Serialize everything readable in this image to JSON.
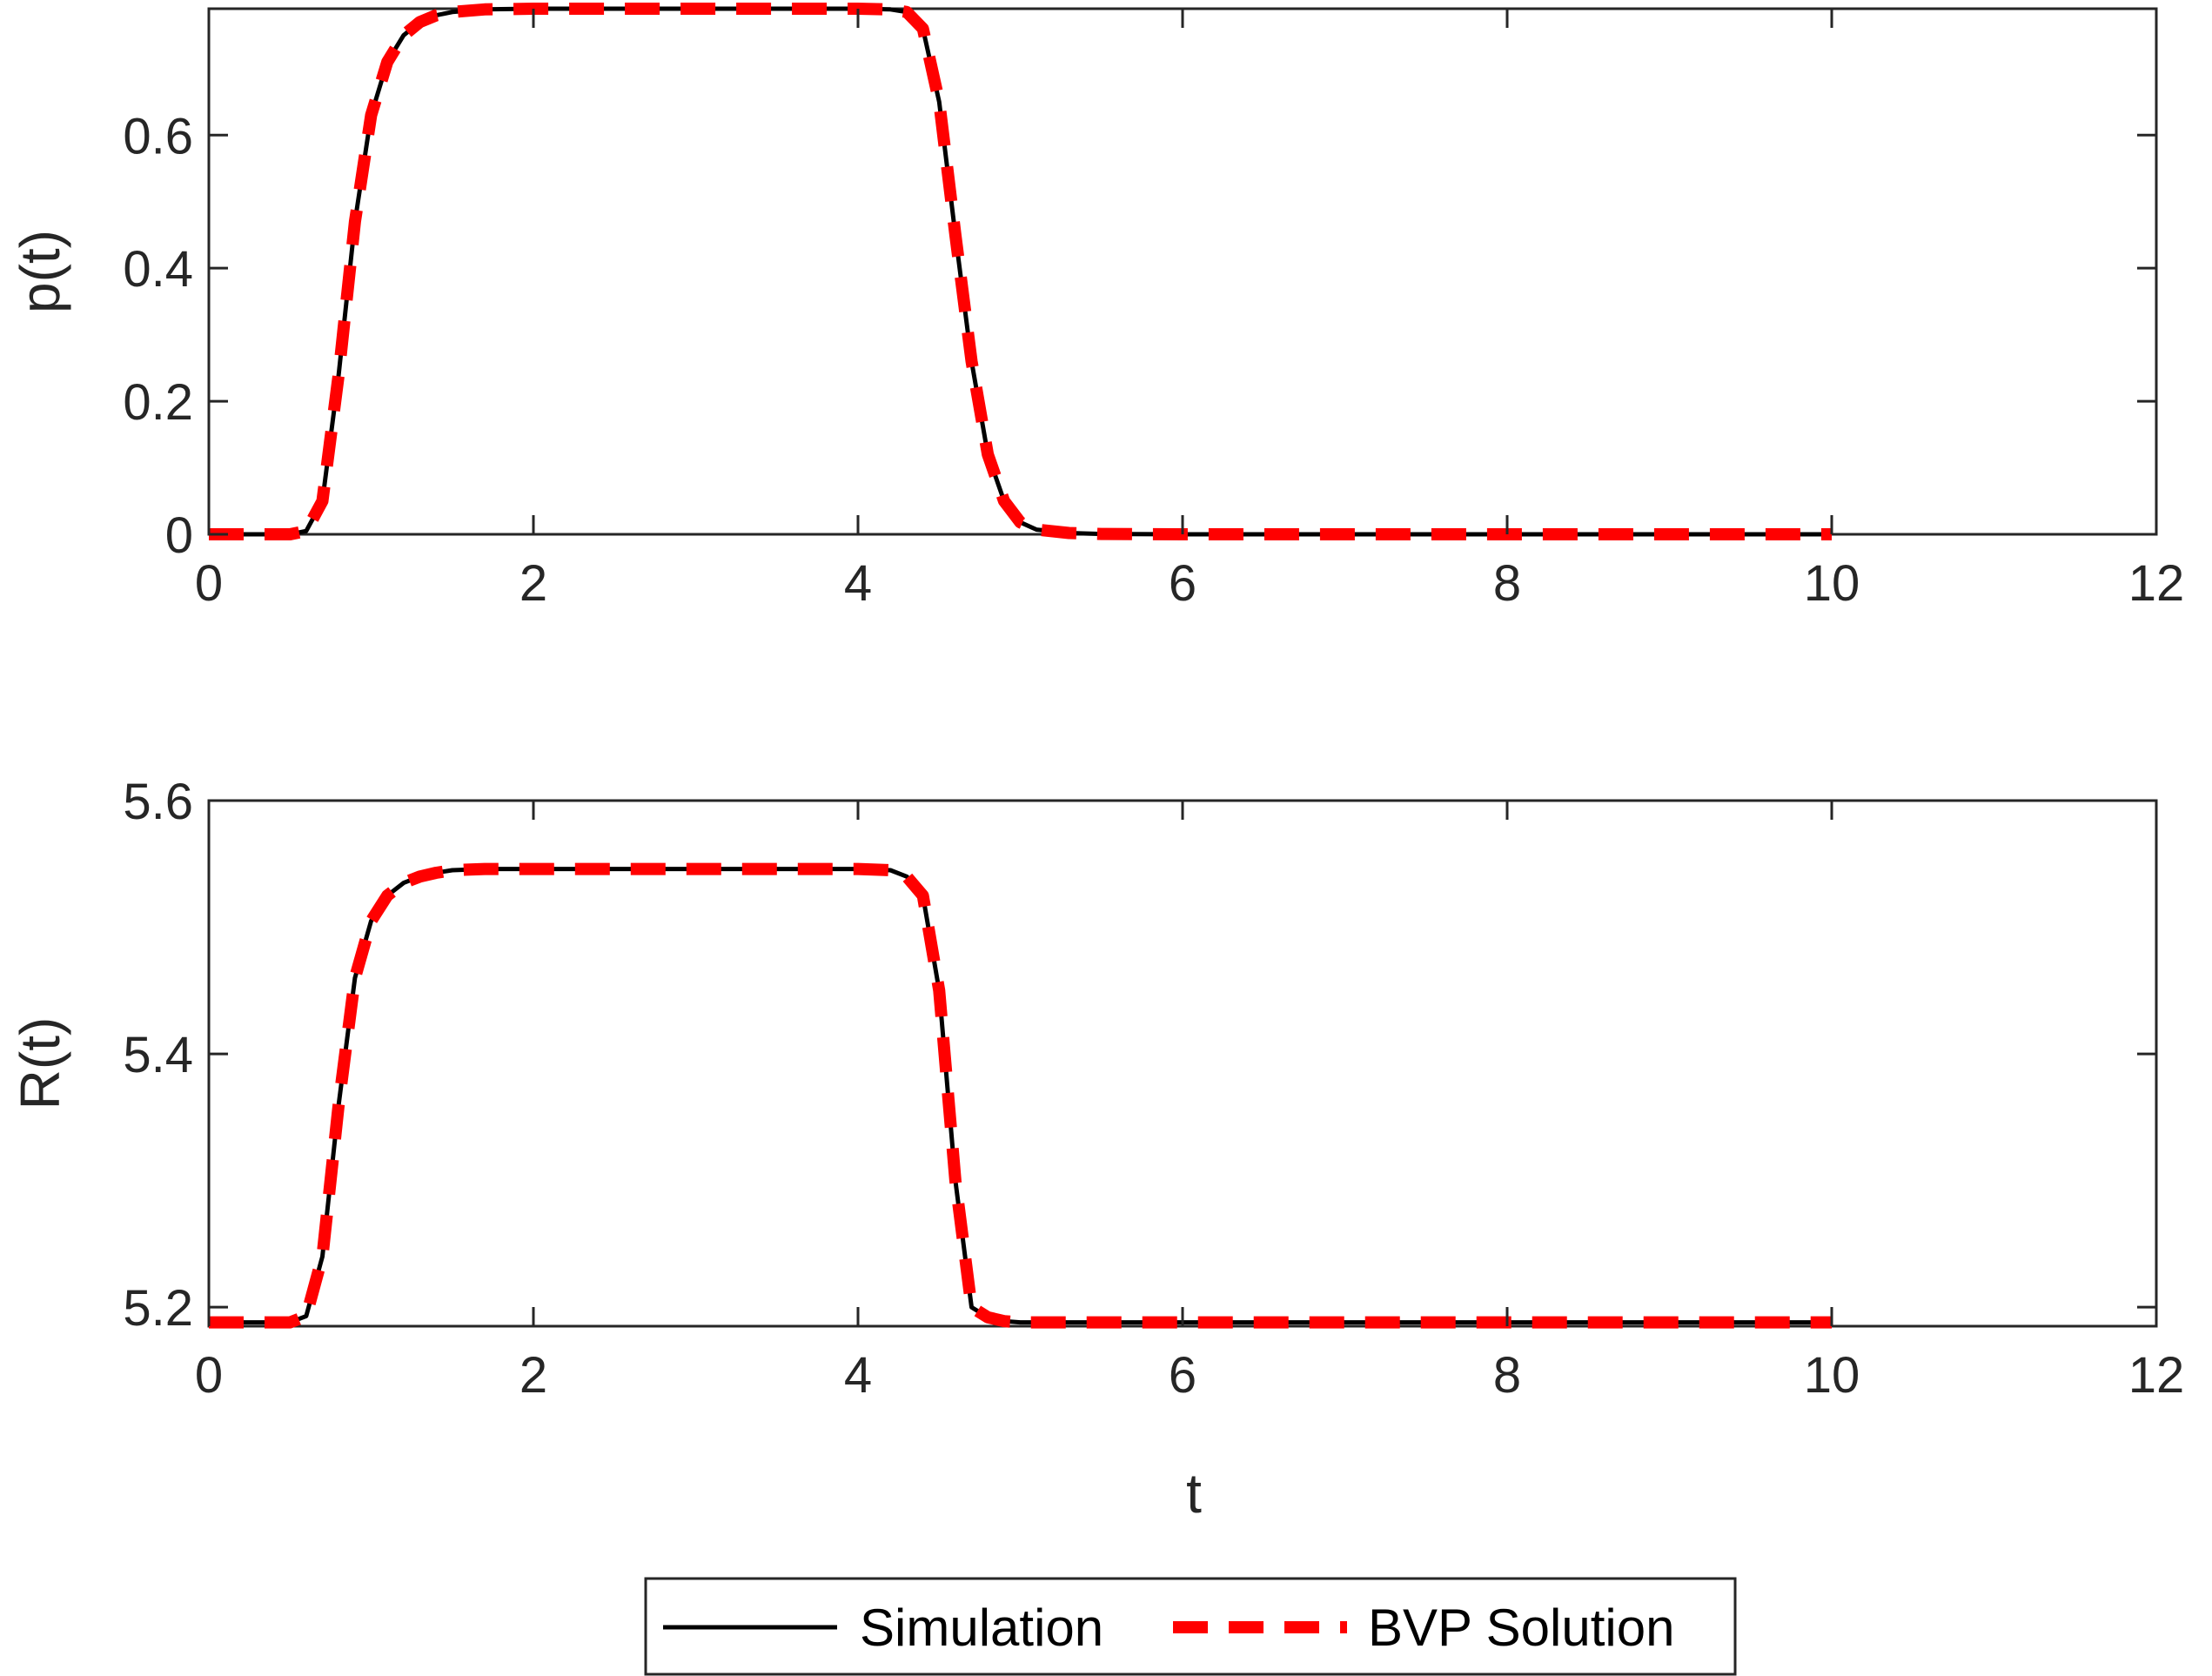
{
  "colors": {
    "simulation": "#000000",
    "bvp": "#ff0000",
    "axes": "#262626",
    "background": "#ffffff"
  },
  "chart_data": [
    {
      "type": "line",
      "ylabel": "p(t)",
      "xlabel": "",
      "xlim": [
        0,
        12
      ],
      "ylim": [
        0,
        0.79
      ],
      "xticks": [
        0,
        2,
        4,
        6,
        8,
        10,
        12
      ],
      "xtick_labels": [
        "0",
        "2",
        "4",
        "6",
        "8",
        "10",
        "12"
      ],
      "yticks": [
        0,
        0.2,
        0.4,
        0.6
      ],
      "ytick_labels": [
        "0",
        "0.2",
        "0.4",
        "0.6"
      ],
      "grid": false,
      "series": [
        {
          "name": "Simulation",
          "style": "solid",
          "x": [
            0,
            0.5,
            0.6,
            0.7,
            0.8,
            0.9,
            1.0,
            1.1,
            1.2,
            1.3,
            1.4,
            1.5,
            1.7,
            2.0,
            3.0,
            4.0,
            4.2,
            4.3,
            4.4,
            4.5,
            4.6,
            4.7,
            4.8,
            4.9,
            5.0,
            5.1,
            5.3,
            5.5,
            6.0,
            8.0,
            10.0
          ],
          "y": [
            0,
            0,
            0.005,
            0.05,
            0.24,
            0.47,
            0.63,
            0.71,
            0.75,
            0.77,
            0.78,
            0.785,
            0.789,
            0.79,
            0.79,
            0.79,
            0.789,
            0.785,
            0.76,
            0.65,
            0.45,
            0.26,
            0.12,
            0.05,
            0.018,
            0.007,
            0.002,
            0.0005,
            0,
            0,
            0
          ]
        },
        {
          "name": "BVP Solution",
          "style": "dashed",
          "x": [
            0,
            0.5,
            0.6,
            0.7,
            0.8,
            0.9,
            1.0,
            1.1,
            1.2,
            1.3,
            1.4,
            1.5,
            1.7,
            2.0,
            3.0,
            4.0,
            4.2,
            4.3,
            4.4,
            4.5,
            4.6,
            4.7,
            4.8,
            4.9,
            5.0,
            5.1,
            5.3,
            5.5,
            6.0,
            8.0,
            10.0
          ],
          "y": [
            0,
            0,
            0.005,
            0.05,
            0.24,
            0.47,
            0.63,
            0.71,
            0.75,
            0.77,
            0.78,
            0.785,
            0.789,
            0.79,
            0.79,
            0.79,
            0.789,
            0.785,
            0.76,
            0.65,
            0.45,
            0.26,
            0.12,
            0.05,
            0.018,
            0.007,
            0.002,
            0.0005,
            0,
            0,
            0
          ]
        }
      ]
    },
    {
      "type": "line",
      "ylabel": "R(t)",
      "xlabel": "t",
      "xlim": [
        0,
        12
      ],
      "ylim": [
        5.185,
        5.6
      ],
      "xticks": [
        0,
        2,
        4,
        6,
        8,
        10,
        12
      ],
      "xtick_labels": [
        "0",
        "2",
        "4",
        "6",
        "8",
        "10",
        "12"
      ],
      "yticks": [
        5.2,
        5.4,
        5.6
      ],
      "ytick_labels": [
        "5.2",
        "5.4",
        "5.6"
      ],
      "grid": false,
      "series": [
        {
          "name": "Simulation",
          "style": "solid",
          "x": [
            0,
            0.5,
            0.6,
            0.7,
            0.8,
            0.9,
            1.0,
            1.1,
            1.2,
            1.3,
            1.4,
            1.5,
            1.7,
            2.0,
            3.0,
            4.0,
            4.2,
            4.3,
            4.4,
            4.5,
            4.6,
            4.7,
            4.8,
            4.9,
            5.0,
            5.2,
            5.5,
            6.0,
            8.0,
            10.0
          ],
          "y": [
            5.188,
            5.188,
            5.193,
            5.24,
            5.36,
            5.46,
            5.505,
            5.525,
            5.535,
            5.54,
            5.543,
            5.545,
            5.546,
            5.546,
            5.546,
            5.546,
            5.545,
            5.54,
            5.525,
            5.45,
            5.3,
            5.2,
            5.192,
            5.189,
            5.188,
            5.188,
            5.188,
            5.188,
            5.188,
            5.188
          ]
        },
        {
          "name": "BVP Solution",
          "style": "dashed",
          "x": [
            0,
            0.5,
            0.6,
            0.7,
            0.8,
            0.9,
            1.0,
            1.1,
            1.2,
            1.3,
            1.4,
            1.5,
            1.7,
            2.0,
            3.0,
            4.0,
            4.2,
            4.3,
            4.4,
            4.5,
            4.6,
            4.7,
            4.8,
            4.9,
            5.0,
            5.2,
            5.5,
            6.0,
            8.0,
            10.0
          ],
          "y": [
            5.188,
            5.188,
            5.193,
            5.24,
            5.36,
            5.46,
            5.505,
            5.525,
            5.535,
            5.54,
            5.543,
            5.545,
            5.546,
            5.546,
            5.546,
            5.546,
            5.545,
            5.54,
            5.525,
            5.45,
            5.3,
            5.2,
            5.192,
            5.189,
            5.188,
            5.188,
            5.188,
            5.188,
            5.188,
            5.188
          ]
        }
      ]
    }
  ],
  "legend": {
    "position": "bottom-center",
    "items": [
      "Simulation",
      "BVP Solution"
    ]
  }
}
